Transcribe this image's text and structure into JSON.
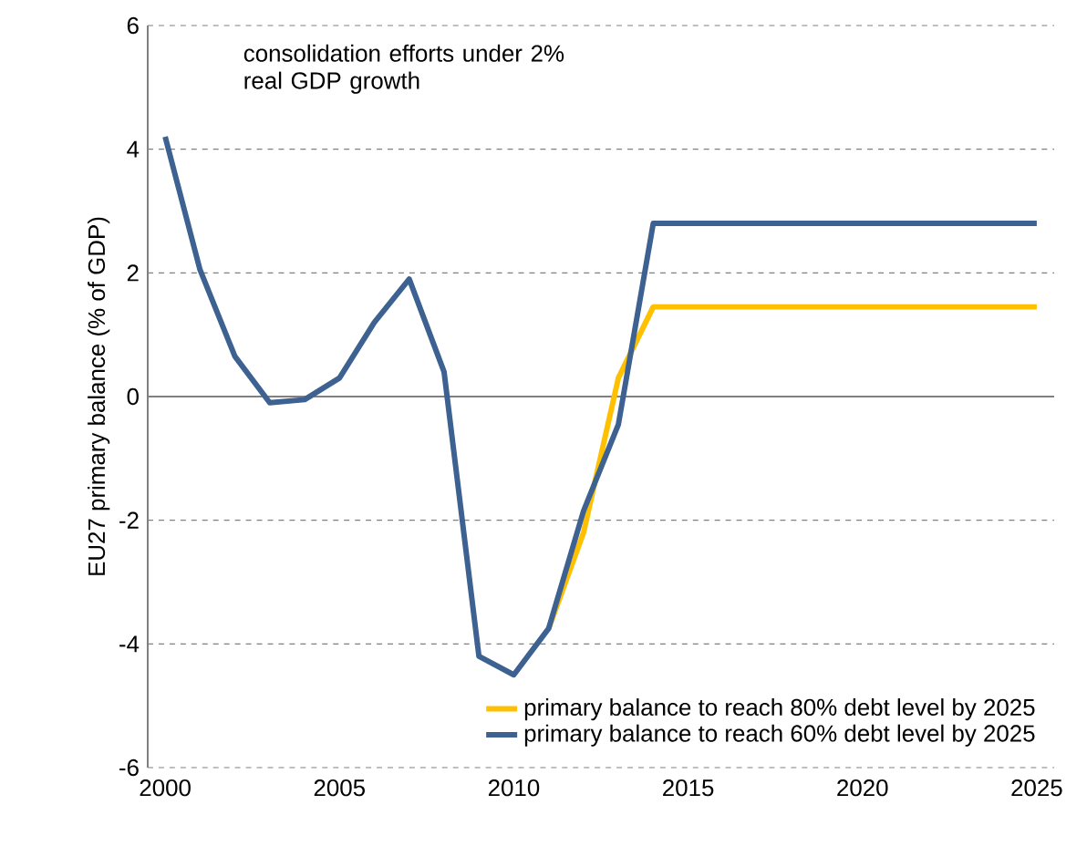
{
  "chart_data": {
    "type": "line",
    "ylabel": "EU27 primary balance (% of GDP)",
    "annotations": [
      "consolidation efforts under 2% real GDP growth"
    ],
    "x": [
      2000,
      2001,
      2002,
      2003,
      2004,
      2005,
      2006,
      2007,
      2008,
      2009,
      2010,
      2011,
      2012,
      2013,
      2014,
      2015,
      2016,
      2017,
      2018,
      2019,
      2020,
      2021,
      2022,
      2023,
      2024,
      2025
    ],
    "xlim": [
      1999.5,
      2025.5
    ],
    "xticks": [
      2000,
      2005,
      2010,
      2015,
      2020,
      2025
    ],
    "ylim": [
      -6,
      6
    ],
    "yticks": [
      -6,
      -4,
      -2,
      0,
      2,
      4,
      6
    ],
    "grid": "y",
    "legend": "bottom right",
    "line_style": "solid",
    "marker": "none",
    "series": [
      {
        "name": "primary balance to reach 80% debt level by 2025",
        "color": "#ffc000",
        "values": [
          null,
          null,
          null,
          null,
          null,
          null,
          null,
          null,
          null,
          null,
          null,
          -3.75,
          -2.2,
          0.3,
          1.45,
          1.45,
          1.45,
          1.45,
          1.45,
          1.45,
          1.45,
          1.45,
          1.45,
          1.45,
          1.45,
          1.45
        ]
      },
      {
        "name": "primary balance to reach 60% debt level by 2025",
        "color": "#3d6190",
        "values": [
          4.2,
          2.05,
          0.65,
          -0.1,
          -0.05,
          0.3,
          1.2,
          1.9,
          0.4,
          -4.2,
          -4.5,
          -3.75,
          -1.85,
          -0.45,
          2.8,
          2.8,
          2.8,
          2.8,
          2.8,
          2.8,
          2.8,
          2.8,
          2.8,
          2.8,
          2.8,
          2.8
        ]
      }
    ]
  }
}
